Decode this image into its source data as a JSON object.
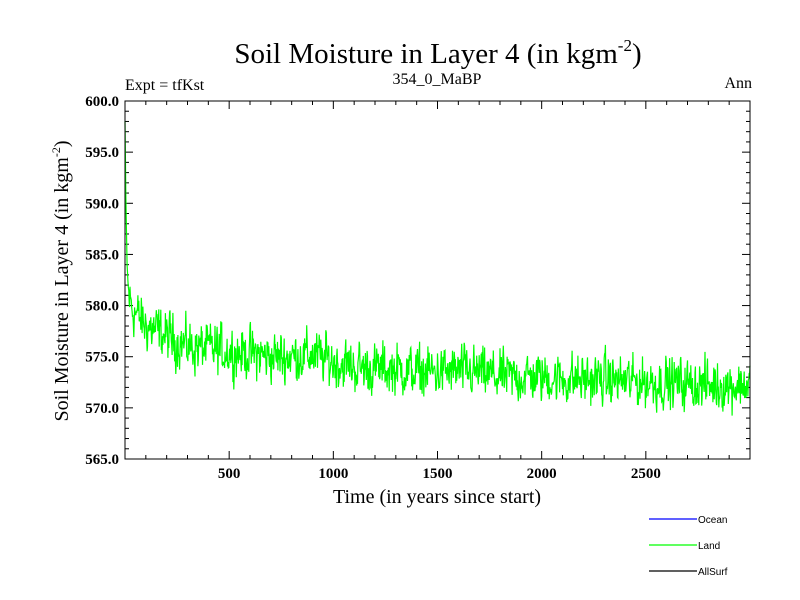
{
  "chart_data": {
    "type": "line",
    "title_main": "Soil Moisture in Layer 4 (in kgm",
    "title_sup": "-2",
    "title_close": ")",
    "header_left": "Expt = tfKst",
    "header_center": "354_0_MaBP",
    "header_right": "Ann",
    "xlabel": "Time (in years since start)",
    "ylabel_main": "Soil Moisture in Layer 4 (in kgm",
    "ylabel_sup": "-2",
    "ylabel_close": ")",
    "xlim": [
      0,
      3000
    ],
    "ylim": [
      565.0,
      600.0
    ],
    "x_ticks": [
      "500",
      "1000",
      "1500",
      "2000",
      "2500"
    ],
    "x_tick_values": [
      500,
      1000,
      1500,
      2000,
      2500
    ],
    "y_ticks": [
      "565.0",
      "570.0",
      "575.0",
      "580.0",
      "585.0",
      "590.0",
      "595.0",
      "600.0"
    ],
    "y_tick_values": [
      565,
      570,
      575,
      580,
      585,
      590,
      595,
      600
    ],
    "legend_placement": "bottom-right",
    "legend": [
      {
        "name": "Ocean",
        "color": "#0000ff"
      },
      {
        "name": "Land",
        "color": "#00ff00"
      },
      {
        "name": "AllSurf",
        "color": "#000000"
      }
    ],
    "series": [
      {
        "name": "Land",
        "color": "#00ff00",
        "x": [
          0,
          5,
          10,
          15,
          20,
          30,
          40,
          60,
          80,
          100,
          150,
          200,
          250,
          300,
          400,
          500,
          600,
          700,
          800,
          900,
          1000,
          1100,
          1200,
          1300,
          1400,
          1500,
          1600,
          1700,
          1800,
          1900,
          2000,
          2100,
          2200,
          2300,
          2400,
          2500,
          2600,
          2700,
          2800,
          2900,
          3000
        ],
        "values": [
          598.0,
          589.0,
          584.0,
          582.0,
          581.0,
          580.0,
          579.5,
          579.0,
          578.5,
          578.0,
          577.5,
          577.0,
          576.5,
          576.0,
          575.8,
          575.5,
          575.3,
          575.0,
          575.0,
          575.2,
          574.5,
          574.0,
          573.8,
          573.8,
          573.5,
          573.5,
          573.6,
          573.4,
          573.0,
          573.0,
          573.0,
          572.8,
          572.8,
          572.8,
          572.6,
          572.5,
          572.5,
          572.3,
          572.2,
          572.2,
          572.3
        ]
      }
    ],
    "noise_amplitude": 2.5
  }
}
